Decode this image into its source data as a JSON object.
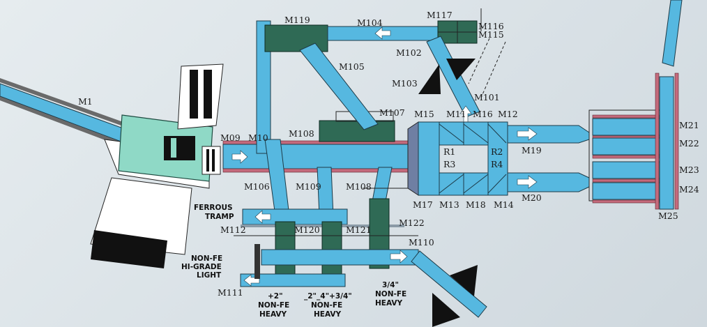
{
  "labels": {
    "M1": "M1",
    "M09": "M09",
    "M10": "M10",
    "M101": "M101",
    "M102": "M102",
    "M103": "M103",
    "M104": "M104",
    "M105": "M105",
    "M106": "M106",
    "M107": "M107",
    "M108a": "M108",
    "M108b": "M108",
    "M109": "M109",
    "M11": "M11",
    "M110": "M110",
    "M111": "M111",
    "M112": "M112",
    "M115": "M115",
    "M116": "M116",
    "M117": "M117",
    "M119": "M119",
    "M12": "M12",
    "M120": "M120",
    "M121": "M121",
    "M122": "M122",
    "M13": "M13",
    "M14": "M14",
    "M15": "M15",
    "M16": "M16",
    "M17": "M17",
    "M18": "M18",
    "M19": "M19",
    "M20": "M20",
    "M21": "M21",
    "M22": "M22",
    "M23": "M23",
    "M24": "M24",
    "M25": "M25",
    "R1": "R1",
    "R2": "R2",
    "R3": "R3",
    "R4": "R4"
  },
  "output_labels": {
    "ferrous_tramp": [
      "FERROUS",
      "TRAMP"
    ],
    "nonfe_light": [
      "NON-FE",
      "HI-GRADE",
      "LIGHT"
    ],
    "plus2": [
      "+2\"",
      "NON-FE",
      "HEAVY"
    ],
    "minus2": [
      "_2\"_4\"+3/4\"",
      "NON-FE",
      "HEAVY"
    ],
    "threequarter": [
      "3/4\"",
      "NON-FE",
      "HEAVY"
    ]
  },
  "colors": {
    "conveyor": "#56b8e0",
    "equipment": "#2f6a55",
    "rail": "#c46a7c",
    "shredder": "#8fd9c6"
  }
}
